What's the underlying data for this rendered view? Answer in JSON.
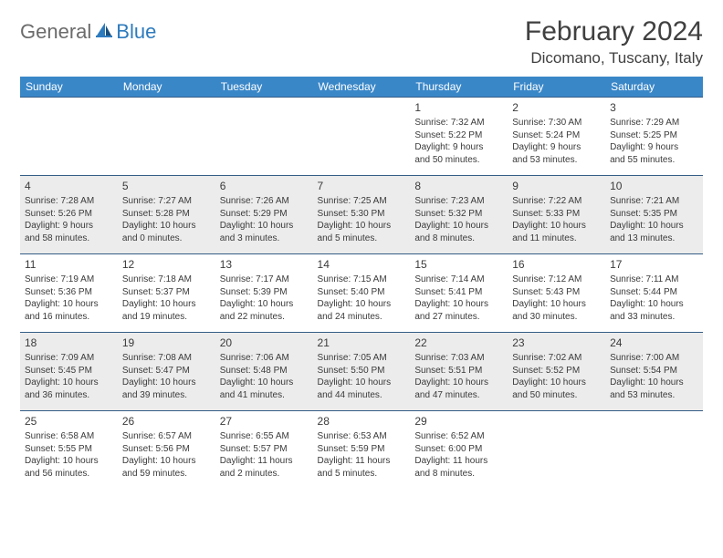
{
  "brand": {
    "part1": "General",
    "part2": "Blue"
  },
  "title": "February 2024",
  "location": "Dicomano, Tuscany, Italy",
  "colors": {
    "header_bg": "#3a87c8",
    "header_text": "#ffffff",
    "row_alt_bg": "#ececec",
    "cell_border": "#355e87",
    "brand_gray": "#6b6b6b",
    "brand_blue": "#2d7bbd",
    "text": "#3a3a3a"
  },
  "days_of_week": [
    "Sunday",
    "Monday",
    "Tuesday",
    "Wednesday",
    "Thursday",
    "Friday",
    "Saturday"
  ],
  "weeks": [
    [
      null,
      null,
      null,
      null,
      {
        "n": "1",
        "sr": "Sunrise: 7:32 AM",
        "ss": "Sunset: 5:22 PM",
        "d1": "Daylight: 9 hours",
        "d2": "and 50 minutes."
      },
      {
        "n": "2",
        "sr": "Sunrise: 7:30 AM",
        "ss": "Sunset: 5:24 PM",
        "d1": "Daylight: 9 hours",
        "d2": "and 53 minutes."
      },
      {
        "n": "3",
        "sr": "Sunrise: 7:29 AM",
        "ss": "Sunset: 5:25 PM",
        "d1": "Daylight: 9 hours",
        "d2": "and 55 minutes."
      }
    ],
    [
      {
        "n": "4",
        "sr": "Sunrise: 7:28 AM",
        "ss": "Sunset: 5:26 PM",
        "d1": "Daylight: 9 hours",
        "d2": "and 58 minutes."
      },
      {
        "n": "5",
        "sr": "Sunrise: 7:27 AM",
        "ss": "Sunset: 5:28 PM",
        "d1": "Daylight: 10 hours",
        "d2": "and 0 minutes."
      },
      {
        "n": "6",
        "sr": "Sunrise: 7:26 AM",
        "ss": "Sunset: 5:29 PM",
        "d1": "Daylight: 10 hours",
        "d2": "and 3 minutes."
      },
      {
        "n": "7",
        "sr": "Sunrise: 7:25 AM",
        "ss": "Sunset: 5:30 PM",
        "d1": "Daylight: 10 hours",
        "d2": "and 5 minutes."
      },
      {
        "n": "8",
        "sr": "Sunrise: 7:23 AM",
        "ss": "Sunset: 5:32 PM",
        "d1": "Daylight: 10 hours",
        "d2": "and 8 minutes."
      },
      {
        "n": "9",
        "sr": "Sunrise: 7:22 AM",
        "ss": "Sunset: 5:33 PM",
        "d1": "Daylight: 10 hours",
        "d2": "and 11 minutes."
      },
      {
        "n": "10",
        "sr": "Sunrise: 7:21 AM",
        "ss": "Sunset: 5:35 PM",
        "d1": "Daylight: 10 hours",
        "d2": "and 13 minutes."
      }
    ],
    [
      {
        "n": "11",
        "sr": "Sunrise: 7:19 AM",
        "ss": "Sunset: 5:36 PM",
        "d1": "Daylight: 10 hours",
        "d2": "and 16 minutes."
      },
      {
        "n": "12",
        "sr": "Sunrise: 7:18 AM",
        "ss": "Sunset: 5:37 PM",
        "d1": "Daylight: 10 hours",
        "d2": "and 19 minutes."
      },
      {
        "n": "13",
        "sr": "Sunrise: 7:17 AM",
        "ss": "Sunset: 5:39 PM",
        "d1": "Daylight: 10 hours",
        "d2": "and 22 minutes."
      },
      {
        "n": "14",
        "sr": "Sunrise: 7:15 AM",
        "ss": "Sunset: 5:40 PM",
        "d1": "Daylight: 10 hours",
        "d2": "and 24 minutes."
      },
      {
        "n": "15",
        "sr": "Sunrise: 7:14 AM",
        "ss": "Sunset: 5:41 PM",
        "d1": "Daylight: 10 hours",
        "d2": "and 27 minutes."
      },
      {
        "n": "16",
        "sr": "Sunrise: 7:12 AM",
        "ss": "Sunset: 5:43 PM",
        "d1": "Daylight: 10 hours",
        "d2": "and 30 minutes."
      },
      {
        "n": "17",
        "sr": "Sunrise: 7:11 AM",
        "ss": "Sunset: 5:44 PM",
        "d1": "Daylight: 10 hours",
        "d2": "and 33 minutes."
      }
    ],
    [
      {
        "n": "18",
        "sr": "Sunrise: 7:09 AM",
        "ss": "Sunset: 5:45 PM",
        "d1": "Daylight: 10 hours",
        "d2": "and 36 minutes."
      },
      {
        "n": "19",
        "sr": "Sunrise: 7:08 AM",
        "ss": "Sunset: 5:47 PM",
        "d1": "Daylight: 10 hours",
        "d2": "and 39 minutes."
      },
      {
        "n": "20",
        "sr": "Sunrise: 7:06 AM",
        "ss": "Sunset: 5:48 PM",
        "d1": "Daylight: 10 hours",
        "d2": "and 41 minutes."
      },
      {
        "n": "21",
        "sr": "Sunrise: 7:05 AM",
        "ss": "Sunset: 5:50 PM",
        "d1": "Daylight: 10 hours",
        "d2": "and 44 minutes."
      },
      {
        "n": "22",
        "sr": "Sunrise: 7:03 AM",
        "ss": "Sunset: 5:51 PM",
        "d1": "Daylight: 10 hours",
        "d2": "and 47 minutes."
      },
      {
        "n": "23",
        "sr": "Sunrise: 7:02 AM",
        "ss": "Sunset: 5:52 PM",
        "d1": "Daylight: 10 hours",
        "d2": "and 50 minutes."
      },
      {
        "n": "24",
        "sr": "Sunrise: 7:00 AM",
        "ss": "Sunset: 5:54 PM",
        "d1": "Daylight: 10 hours",
        "d2": "and 53 minutes."
      }
    ],
    [
      {
        "n": "25",
        "sr": "Sunrise: 6:58 AM",
        "ss": "Sunset: 5:55 PM",
        "d1": "Daylight: 10 hours",
        "d2": "and 56 minutes."
      },
      {
        "n": "26",
        "sr": "Sunrise: 6:57 AM",
        "ss": "Sunset: 5:56 PM",
        "d1": "Daylight: 10 hours",
        "d2": "and 59 minutes."
      },
      {
        "n": "27",
        "sr": "Sunrise: 6:55 AM",
        "ss": "Sunset: 5:57 PM",
        "d1": "Daylight: 11 hours",
        "d2": "and 2 minutes."
      },
      {
        "n": "28",
        "sr": "Sunrise: 6:53 AM",
        "ss": "Sunset: 5:59 PM",
        "d1": "Daylight: 11 hours",
        "d2": "and 5 minutes."
      },
      {
        "n": "29",
        "sr": "Sunrise: 6:52 AM",
        "ss": "Sunset: 6:00 PM",
        "d1": "Daylight: 11 hours",
        "d2": "and 8 minutes."
      },
      null,
      null
    ]
  ]
}
